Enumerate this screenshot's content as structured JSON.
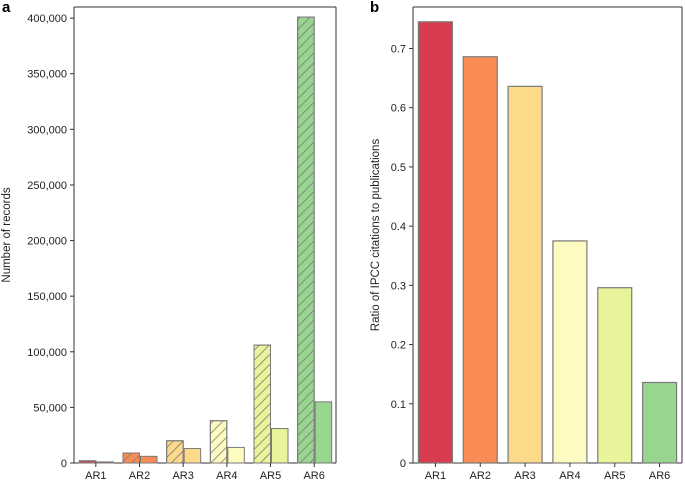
{
  "chart_data": [
    {
      "panel_label": "a",
      "type": "bar",
      "title": "",
      "xlabel": "",
      "ylabel": "Number of records",
      "categories": [
        "AR1",
        "AR2",
        "AR3",
        "AR4",
        "AR5",
        "AR6"
      ],
      "series": [
        {
          "name": "hatched",
          "pattern": "hatched",
          "values": [
            2000,
            9000,
            20000,
            38000,
            106000,
            401000
          ]
        },
        {
          "name": "solid",
          "pattern": "solid",
          "values": [
            1000,
            6000,
            13000,
            14000,
            31000,
            55000
          ]
        }
      ],
      "bar_colors": [
        "#d73d4f",
        "#f98b55",
        "#fdd98a",
        "#fefbc0",
        "#e9f39a",
        "#98d58f"
      ],
      "ylim": [
        0,
        410000
      ],
      "yticks": [
        0,
        50000,
        100000,
        150000,
        200000,
        250000,
        300000,
        350000,
        400000
      ],
      "ytick_labels": [
        "0",
        "50,000",
        "100,000",
        "150,000",
        "200,000",
        "250,000",
        "300,000",
        "350,000",
        "400,000"
      ]
    },
    {
      "panel_label": "b",
      "type": "bar",
      "title": "",
      "xlabel": "",
      "ylabel": "Ratio of IPCC citations to publications",
      "categories": [
        "AR1",
        "AR2",
        "AR3",
        "AR4",
        "AR5",
        "AR6"
      ],
      "values": [
        0.745,
        0.686,
        0.636,
        0.375,
        0.296,
        0.136
      ],
      "bar_colors": [
        "#d73d4f",
        "#f98b55",
        "#fdd98a",
        "#fefbc0",
        "#e9f39a",
        "#98d58f"
      ],
      "ylim": [
        0,
        0.77
      ],
      "yticks": [
        0,
        0.1,
        0.2,
        0.3,
        0.4,
        0.5,
        0.6,
        0.7
      ],
      "ytick_labels": [
        "0",
        "0.1",
        "0.2",
        "0.3",
        "0.4",
        "0.5",
        "0.6",
        "0.7"
      ]
    }
  ]
}
